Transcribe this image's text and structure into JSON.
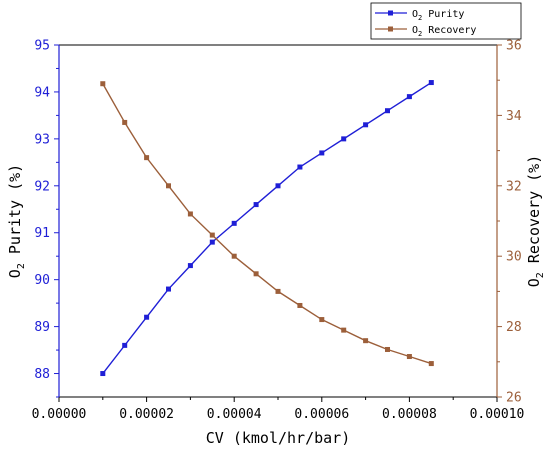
{
  "chart_data": {
    "type": "line",
    "xlabel": "CV (kmol/hr/bar)",
    "ylabel_left": "O2 Purity (%)",
    "ylabel_right": "O2 Recovery (%)",
    "xlim": [
      0,
      0.0001
    ],
    "ylim_left": [
      87.5,
      95
    ],
    "ylim_right": [
      26,
      36
    ],
    "x_ticks": [
      "0.00000",
      "0.00002",
      "0.00004",
      "0.00006",
      "0.00008",
      "0.00010"
    ],
    "y_left_ticks": [
      "88",
      "89",
      "90",
      "91",
      "92",
      "93",
      "94",
      "95"
    ],
    "y_right_ticks": [
      "26",
      "28",
      "30",
      "32",
      "34",
      "36"
    ],
    "legend_position": "top-right",
    "x": [
      1e-05,
      1.5e-05,
      2e-05,
      2.5e-05,
      3e-05,
      3.5e-05,
      4e-05,
      4.5e-05,
      5e-05,
      5.5e-05,
      6e-05,
      6.5e-05,
      7e-05,
      7.5e-05,
      8e-05,
      8.5e-05
    ],
    "series": [
      {
        "name": "O2 Purity",
        "axis": "left",
        "color": "#1f1fd6",
        "marker": "square",
        "values": [
          88.0,
          88.6,
          89.2,
          89.8,
          90.3,
          90.8,
          91.2,
          91.6,
          92.0,
          92.4,
          92.7,
          93.0,
          93.3,
          93.6,
          93.9,
          94.2
        ]
      },
      {
        "name": "O2 Recovery",
        "axis": "right",
        "color": "#9c5f3a",
        "marker": "square",
        "values": [
          34.9,
          33.8,
          32.8,
          32.0,
          31.2,
          30.6,
          30.0,
          29.5,
          29.0,
          28.6,
          28.2,
          27.9,
          27.6,
          27.35,
          27.15,
          26.95
        ]
      }
    ]
  },
  "colors": {
    "left_axis": "#1f1fd6",
    "right_axis": "#9c5f3a",
    "frame": "#000000"
  }
}
